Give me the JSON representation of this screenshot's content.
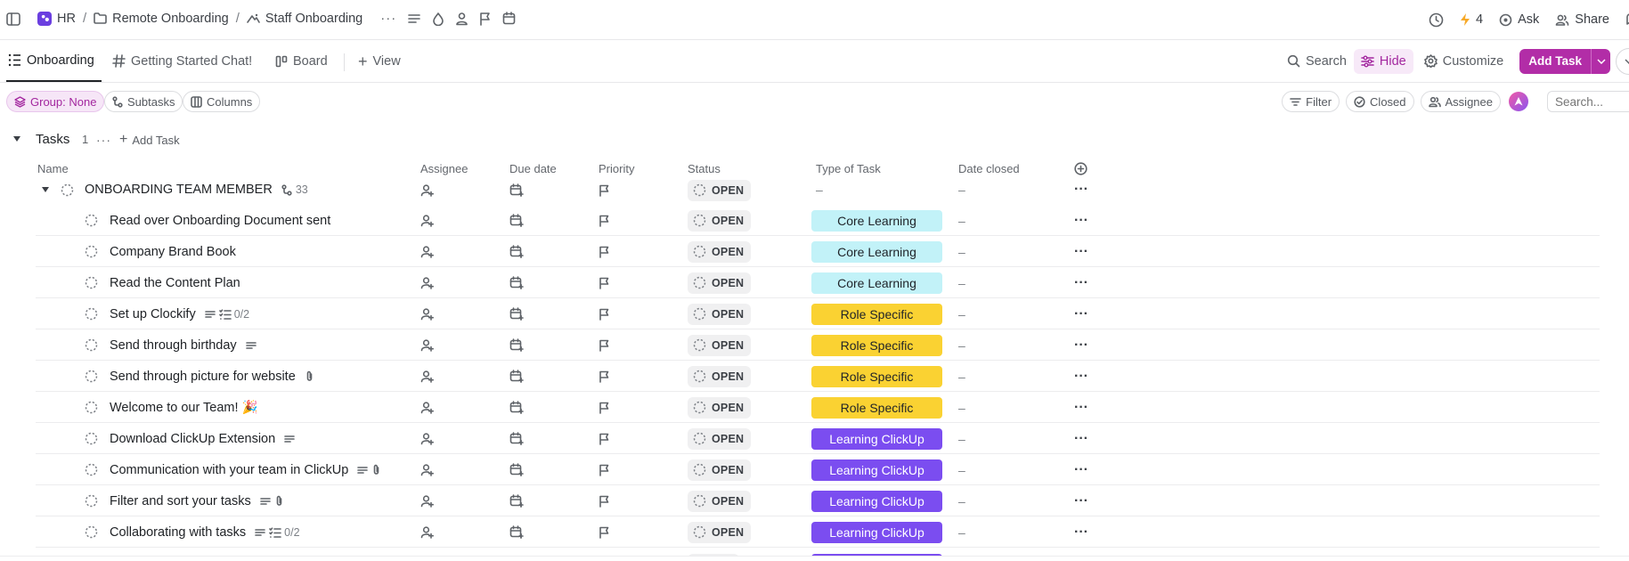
{
  "breadcrumb": {
    "workspace": "HR",
    "folder": "Remote Onboarding",
    "list": "Staff Onboarding"
  },
  "topbar": {
    "bolt_count": "4",
    "ask_label": "Ask",
    "share_label": "Share"
  },
  "tabs": {
    "onboarding": "Onboarding",
    "chat": "Getting Started Chat!",
    "board": "Board",
    "add_view": "View"
  },
  "toolbar": {
    "search": "Search",
    "hide": "Hide",
    "customize": "Customize",
    "add_task": "Add Task"
  },
  "filters": {
    "group": "Group: None",
    "subtasks": "Subtasks",
    "columns": "Columns",
    "filter": "Filter",
    "closed": "Closed",
    "assignee": "Assignee",
    "search_placeholder": "Search..."
  },
  "group": {
    "title": "Tasks",
    "count": "1",
    "add_task": "Add Task"
  },
  "columns": {
    "name": "Name",
    "assignee": "Assignee",
    "due_date": "Due date",
    "priority": "Priority",
    "status": "Status",
    "type": "Type of Task",
    "date_closed": "Date closed"
  },
  "colors": {
    "accent": "#b22da7",
    "core_learning": "#c2f2f8",
    "role_specific": "#fad232",
    "learning_clickup": "#7b4df0"
  },
  "parent_task": {
    "name": "ONBOARDING TEAM MEMBER",
    "subtask_count": "33",
    "status": "OPEN",
    "type": "–",
    "date_closed": "–"
  },
  "tasks": [
    {
      "name": "Read over Onboarding Document sent",
      "status": "OPEN",
      "type": "Core Learning",
      "date_closed": "–"
    },
    {
      "name": "Company Brand Book",
      "status": "OPEN",
      "type": "Core Learning",
      "date_closed": "–"
    },
    {
      "name": "Read the Content Plan",
      "status": "OPEN",
      "type": "Core Learning",
      "date_closed": "–"
    },
    {
      "name": "Set up Clockify",
      "checklist": "0/2",
      "status": "OPEN",
      "type": "Role Specific",
      "date_closed": "–"
    },
    {
      "name": "Send through birthday",
      "status": "OPEN",
      "type": "Role Specific",
      "date_closed": "–"
    },
    {
      "name": "Send through picture for website",
      "status": "OPEN",
      "type": "Role Specific",
      "date_closed": "–"
    },
    {
      "name": "Welcome to our Team! 🎉",
      "status": "OPEN",
      "type": "Role Specific",
      "date_closed": "–"
    },
    {
      "name": "Download ClickUp Extension",
      "status": "OPEN",
      "type": "Learning ClickUp",
      "date_closed": "–"
    },
    {
      "name": "Communication with your team in ClickUp",
      "status": "OPEN",
      "type": "Learning ClickUp",
      "date_closed": "–"
    },
    {
      "name": "Filter and sort your tasks",
      "status": "OPEN",
      "type": "Learning ClickUp",
      "date_closed": "–"
    },
    {
      "name": "Collaborating with tasks",
      "checklist": "0/2",
      "status": "OPEN",
      "type": "Learning ClickUp",
      "date_closed": "–"
    }
  ]
}
